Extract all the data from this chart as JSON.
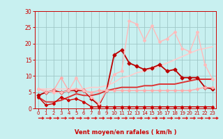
{
  "background_color": "#c8f0f0",
  "grid_color": "#a0c8c8",
  "xlabel": "Vent moyen/en rafales ( km/h )",
  "xlabel_color": "#cc0000",
  "tick_color": "#cc0000",
  "arrow_color": "#dd2222",
  "xlim": [
    -0.5,
    23.5
  ],
  "ylim": [
    0,
    30
  ],
  "xticks": [
    0,
    1,
    2,
    3,
    4,
    5,
    6,
    7,
    8,
    9,
    10,
    11,
    12,
    13,
    14,
    15,
    16,
    17,
    18,
    19,
    20,
    21,
    22,
    23
  ],
  "yticks": [
    0,
    5,
    10,
    15,
    20,
    25,
    30
  ],
  "lines": [
    {
      "x": [
        0,
        1,
        2,
        3,
        4,
        5,
        6,
        7,
        8,
        9,
        10,
        11,
        12,
        13,
        14,
        15,
        16,
        17,
        18,
        19,
        20,
        21,
        22,
        23
      ],
      "y": [
        3.5,
        1.0,
        1.5,
        3.5,
        2.5,
        3.0,
        2.0,
        0.5,
        0.5,
        0.5,
        0.5,
        0.5,
        0.5,
        0.5,
        0.5,
        0.5,
        0.5,
        0.5,
        0.5,
        0.5,
        0.5,
        0.5,
        0.5,
        0.5
      ],
      "color": "#cc0000",
      "lw": 1.0,
      "marker": "D",
      "ms": 2.0
    },
    {
      "x": [
        0,
        1,
        2,
        3,
        4,
        5,
        6,
        7,
        8,
        9,
        10,
        11,
        12,
        13,
        14,
        15,
        16,
        17,
        18,
        19,
        20,
        21,
        22,
        23
      ],
      "y": [
        4.0,
        5.0,
        5.5,
        5.0,
        5.5,
        5.5,
        5.5,
        3.0,
        1.0,
        5.5,
        16.5,
        18.0,
        14.0,
        13.0,
        12.0,
        12.5,
        13.5,
        11.5,
        12.0,
        9.5,
        9.5,
        9.5,
        6.5,
        6.0
      ],
      "color": "#bb0000",
      "lw": 1.3,
      "marker": "D",
      "ms": 2.5
    },
    {
      "x": [
        0,
        1,
        2,
        3,
        4,
        5,
        6,
        7,
        8,
        9,
        10,
        11,
        12,
        13,
        14,
        15,
        16,
        17,
        18,
        19,
        20,
        21,
        22,
        23
      ],
      "y": [
        6.0,
        5.0,
        5.5,
        9.5,
        5.5,
        6.0,
        5.5,
        5.0,
        5.5,
        5.5,
        5.5,
        5.5,
        5.5,
        5.5,
        5.5,
        5.5,
        5.5,
        5.5,
        5.5,
        5.5,
        5.5,
        6.0,
        6.5,
        6.5
      ],
      "color": "#ffaaaa",
      "lw": 1.0,
      "marker": "D",
      "ms": 2.0
    },
    {
      "x": [
        0,
        2,
        3,
        4,
        5,
        6,
        7,
        8,
        9,
        10,
        11,
        12,
        13,
        14,
        15,
        16,
        17,
        18,
        19,
        20,
        21,
        22,
        23
      ],
      "y": [
        6.0,
        5.0,
        5.0,
        5.5,
        9.5,
        5.5,
        3.5,
        1.5,
        5.5,
        10.5,
        11.5,
        27.0,
        26.0,
        21.0,
        25.5,
        20.5,
        21.5,
        23.5,
        18.5,
        17.5,
        23.5,
        13.5,
        9.0
      ],
      "color": "#ffbbbb",
      "lw": 1.0,
      "marker": "D",
      "ms": 2.0
    },
    {
      "x": [
        0,
        1,
        2,
        3,
        4,
        5,
        6,
        7,
        8,
        9,
        10,
        11,
        12,
        13,
        14,
        15,
        16,
        17,
        18,
        19,
        20,
        21,
        22,
        23
      ],
      "y": [
        3.5,
        2.0,
        2.0,
        2.5,
        3.5,
        4.5,
        4.0,
        4.0,
        4.5,
        5.5,
        6.0,
        6.5,
        6.5,
        6.5,
        7.0,
        7.0,
        7.5,
        7.5,
        7.5,
        8.0,
        8.5,
        9.0,
        9.0,
        9.0
      ],
      "color": "#dd3333",
      "lw": 1.4,
      "marker": null,
      "ms": 0
    },
    {
      "x": [
        0,
        1,
        2,
        3,
        4,
        5,
        6,
        7,
        8,
        9,
        10,
        11,
        12,
        13,
        14,
        15,
        16,
        17,
        18,
        19,
        20,
        21,
        22,
        23
      ],
      "y": [
        6.0,
        6.0,
        6.0,
        6.0,
        6.0,
        6.0,
        6.0,
        6.5,
        6.5,
        7.0,
        8.0,
        9.5,
        10.0,
        11.0,
        11.5,
        12.0,
        13.0,
        14.0,
        15.0,
        16.0,
        17.0,
        18.0,
        18.5,
        19.0
      ],
      "color": "#ffcccc",
      "lw": 1.2,
      "marker": null,
      "ms": 0
    }
  ],
  "figsize": [
    3.2,
    2.0
  ],
  "dpi": 100
}
